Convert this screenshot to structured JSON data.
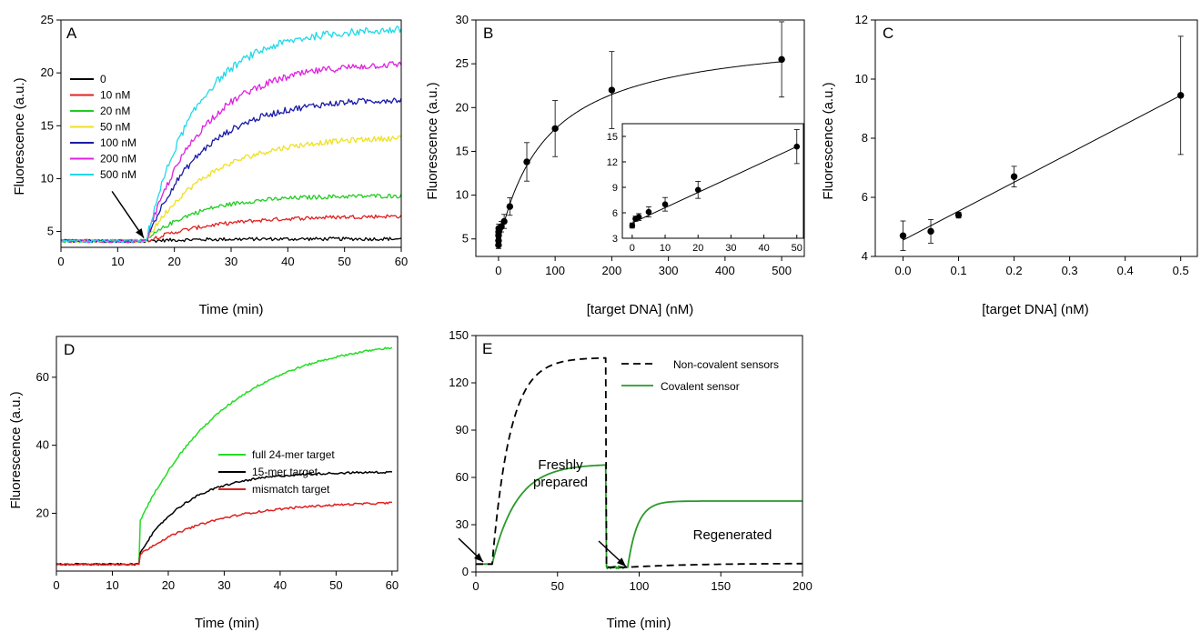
{
  "chart_data": [
    {
      "panel": "A",
      "type": "line",
      "xlabel": "Time (min)",
      "ylabel": "Fluorescence (a.u.)",
      "xlim": [
        0,
        60
      ],
      "ylim": [
        3.5,
        25
      ],
      "xticks": [
        0,
        10,
        20,
        30,
        40,
        50,
        60
      ],
      "yticks": [
        5,
        10,
        15,
        20,
        25
      ],
      "legend_position": "top-left",
      "injection_time": 15,
      "series": [
        {
          "name": "0",
          "color": "#000000",
          "baseline": 4.1,
          "final": 4.3,
          "tau": 8
        },
        {
          "name": "10 nM",
          "color": "#e02020",
          "baseline": 4.1,
          "final": 6.5,
          "tau": 12
        },
        {
          "name": "20 nM",
          "color": "#22cc22",
          "baseline": 4.1,
          "final": 8.4,
          "tau": 9
        },
        {
          "name": "50 nM",
          "color": "#f0e020",
          "baseline": 4.1,
          "final": 14.0,
          "tau": 11
        },
        {
          "name": "100 nM",
          "color": "#1a1aa8",
          "baseline": 4.1,
          "final": 17.6,
          "tau": 10
        },
        {
          "name": "200 nM",
          "color": "#e020e0",
          "baseline": 4.1,
          "final": 21.0,
          "tau": 10
        },
        {
          "name": "500 nM",
          "color": "#20d8e8",
          "baseline": 4.1,
          "final": 24.2,
          "tau": 9
        }
      ]
    },
    {
      "panel": "B",
      "type": "scatter",
      "xlabel": "[target DNA] (nM)",
      "ylabel": "Fluorescence (a.u.)",
      "xlim": [
        -40,
        540
      ],
      "ylim": [
        3,
        30
      ],
      "xticks": [
        0,
        100,
        200,
        300,
        400,
        500
      ],
      "yticks": [
        5,
        10,
        15,
        20,
        25,
        30
      ],
      "points": [
        {
          "x": 0,
          "y": 4.3,
          "err": 0.4
        },
        {
          "x": 0.05,
          "y": 4.8,
          "err": 0.4
        },
        {
          "x": 0.1,
          "y": 5.4,
          "err": 0.3
        },
        {
          "x": 0.2,
          "y": 5.8,
          "err": 0.4
        },
        {
          "x": 0.5,
          "y": 6.2,
          "err": 0.5
        },
        {
          "x": 5,
          "y": 6.4,
          "err": 0.6
        },
        {
          "x": 10,
          "y": 7.0,
          "err": 0.8
        },
        {
          "x": 20,
          "y": 8.7,
          "err": 1.0
        },
        {
          "x": 50,
          "y": 13.8,
          "err": 2.2
        },
        {
          "x": 100,
          "y": 17.6,
          "err": 3.2
        },
        {
          "x": 200,
          "y": 22.0,
          "err": 4.4
        },
        {
          "x": 500,
          "y": 25.5,
          "err": 4.3
        }
      ],
      "fit": {
        "type": "hyperbolic",
        "y0": 4.3,
        "ymax": 24.5,
        "kd": 85
      },
      "inset": {
        "xlim": [
          -3,
          52
        ],
        "ylim": [
          3,
          16.5
        ],
        "xticks": [
          0,
          10,
          20,
          30,
          40,
          50
        ],
        "yticks": [
          3,
          6,
          9,
          12,
          15
        ],
        "points": [
          {
            "x": 0,
            "y": 4.5,
            "err": 0.3
          },
          {
            "x": 1,
            "y": 5.3,
            "err": 0.3
          },
          {
            "x": 2,
            "y": 5.5,
            "err": 0.4
          },
          {
            "x": 5,
            "y": 6.1,
            "err": 0.6
          },
          {
            "x": 10,
            "y": 7.0,
            "err": 0.8
          },
          {
            "x": 20,
            "y": 8.7,
            "err": 1.0
          },
          {
            "x": 50,
            "y": 13.8,
            "err": 2.0
          }
        ],
        "fit": {
          "x0": 0,
          "y0": 4.8,
          "x1": 50,
          "y1": 13.8
        }
      }
    },
    {
      "panel": "C",
      "type": "scatter",
      "xlabel": "[target DNA] (nM)",
      "ylabel": "Fluorescence (a.u.)",
      "xlim": [
        -0.05,
        0.53
      ],
      "ylim": [
        4,
        12
      ],
      "xticks": [
        0.0,
        0.1,
        0.2,
        0.3,
        0.4,
        0.5
      ],
      "xticklabels": [
        "0.0",
        "0.1",
        "0.2",
        "0.3",
        "0.4",
        "0.5"
      ],
      "yticks": [
        4,
        6,
        8,
        10,
        12
      ],
      "points": [
        {
          "x": 0.0,
          "y": 4.7,
          "err": 0.5
        },
        {
          "x": 0.05,
          "y": 4.85,
          "err": 0.4
        },
        {
          "x": 0.1,
          "y": 5.4,
          "err": 0.1
        },
        {
          "x": 0.2,
          "y": 6.7,
          "err": 0.35
        },
        {
          "x": 0.5,
          "y": 9.45,
          "err": 2.0
        }
      ],
      "fit": {
        "x0": 0.0,
        "y0": 4.55,
        "x1": 0.5,
        "y1": 9.45
      }
    },
    {
      "panel": "D",
      "type": "line",
      "xlabel": "Time (min)",
      "ylabel": "Fluorescence (a.u.)",
      "xlim": [
        0,
        61
      ],
      "ylim": [
        3,
        72
      ],
      "xticks": [
        0,
        10,
        20,
        30,
        40,
        50,
        60
      ],
      "yticks": [
        20,
        40,
        60
      ],
      "legend_position": "center-right",
      "injection_time": 15,
      "series": [
        {
          "name": "full 24-mer target",
          "color": "#22dd22",
          "baseline": 5,
          "jump": 18,
          "final": 72,
          "tau": 16
        },
        {
          "name": "15-mer target",
          "color": "#000000",
          "baseline": 5,
          "jump": 8.5,
          "final": 32.2,
          "tau": 8.5
        },
        {
          "name": "mismatch target",
          "color": "#e02020",
          "baseline": 5,
          "jump": 8,
          "final": 23.5,
          "tau": 13
        }
      ]
    },
    {
      "panel": "E",
      "type": "line",
      "xlabel": "Time (min)",
      "ylabel": "",
      "xlim": [
        0,
        200
      ],
      "ylim": [
        0,
        150
      ],
      "xticks": [
        0,
        50,
        100,
        150,
        200
      ],
      "yticks": [
        0,
        30,
        60,
        90,
        120,
        150
      ],
      "legend_position": "top-right",
      "annotations": [
        "Freshly",
        "prepared",
        "Regenerated"
      ],
      "series": [
        {
          "name": "Non-covalent sensors",
          "color": "#000000",
          "style": "dashed"
        },
        {
          "name": "Covalent sensor",
          "color": "#2a9a2a",
          "style": "solid"
        }
      ]
    }
  ]
}
